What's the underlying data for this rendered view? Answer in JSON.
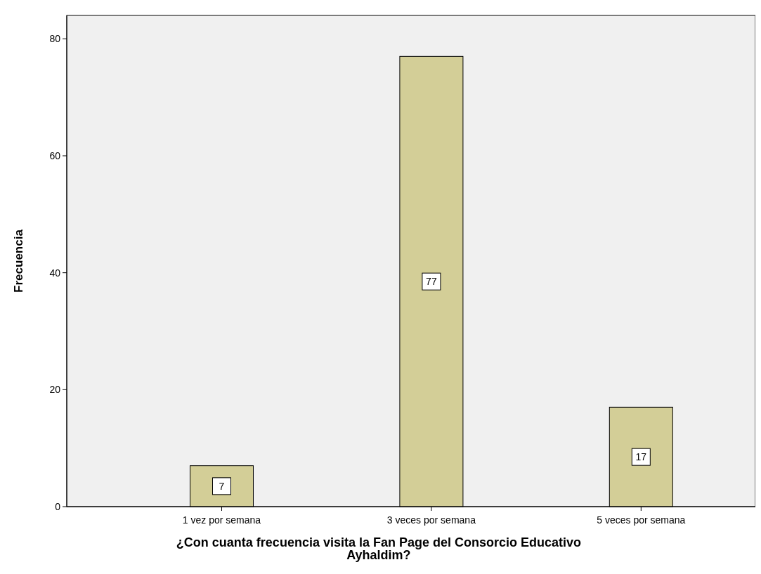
{
  "chart_data": {
    "type": "bar",
    "xlabel": "¿Con cuanta frecuencia visita la Fan Page del Consorcio Educativo Ayhaldim?",
    "ylabel": "Frecuencia",
    "categories": [
      "1 vez por semana",
      "3 veces por semana",
      "5 veces por semana"
    ],
    "values": [
      7,
      77,
      17
    ],
    "color": "#d3ce97",
    "ylim": [
      0,
      84
    ],
    "yticks": [
      0,
      20,
      40,
      60,
      80
    ],
    "data_labels": true,
    "grid": false
  }
}
